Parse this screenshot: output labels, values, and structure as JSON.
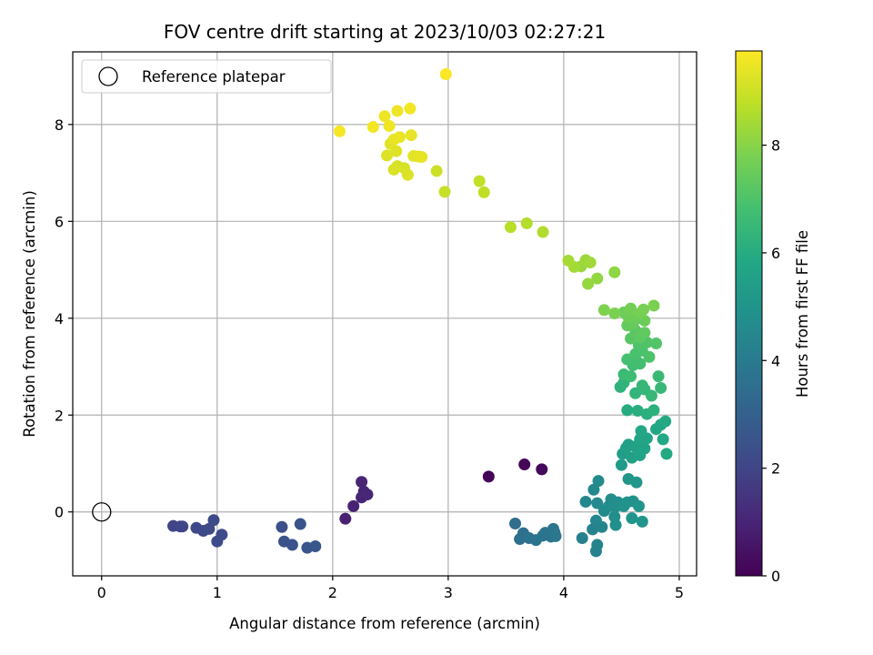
{
  "chart_data": {
    "type": "scatter",
    "title": "FOV centre drift starting at 2023/10/03 02:27:21",
    "xlabel": "Angular distance from reference (arcmin)",
    "ylabel": "Rotation from reference (arcmin)",
    "xlim": [
      -0.25,
      5.15
    ],
    "ylim": [
      -1.32,
      9.5
    ],
    "x_ticks": [
      0,
      1,
      2,
      3,
      4,
      5
    ],
    "y_ticks": [
      0,
      2,
      4,
      6,
      8
    ],
    "grid": true,
    "legend": {
      "position": "top-left",
      "entries": [
        "Reference platepar"
      ]
    },
    "reference_point": {
      "x": 0,
      "y": 0,
      "label": "Reference platepar"
    },
    "colorbar": {
      "label": "Hours from first FF file",
      "colormap": "viridis",
      "range": [
        0,
        9.75
      ],
      "ticks": [
        0,
        2,
        4,
        6,
        8
      ]
    },
    "series": [
      {
        "color_variable": "Hours from first FF file",
        "points": [
          [
            3.35,
            0.73,
            0.1
          ],
          [
            3.66,
            0.98,
            0.15
          ],
          [
            3.81,
            0.88,
            0.2
          ],
          [
            2.11,
            -0.14,
            0.9
          ],
          [
            2.18,
            0.12,
            0.95
          ],
          [
            2.25,
            0.62,
            1.0
          ],
          [
            2.27,
            0.42,
            1.0
          ],
          [
            2.25,
            0.3,
            1.05
          ],
          [
            2.3,
            0.36,
            1.1
          ],
          [
            0.62,
            -0.29,
            2.0
          ],
          [
            0.68,
            -0.3,
            2.0
          ],
          [
            0.7,
            -0.3,
            2.05
          ],
          [
            0.82,
            -0.33,
            2.1
          ],
          [
            0.88,
            -0.39,
            2.1
          ],
          [
            0.93,
            -0.35,
            2.15
          ],
          [
            0.97,
            -0.17,
            2.2
          ],
          [
            1.0,
            -0.61,
            2.2
          ],
          [
            1.04,
            -0.47,
            2.25
          ],
          [
            1.56,
            -0.31,
            2.4
          ],
          [
            1.58,
            -0.61,
            2.45
          ],
          [
            1.65,
            -0.68,
            2.5
          ],
          [
            1.72,
            -0.25,
            2.5
          ],
          [
            1.78,
            -0.74,
            2.55
          ],
          [
            1.85,
            -0.71,
            2.6
          ],
          [
            3.58,
            -0.24,
            3.5
          ],
          [
            3.62,
            -0.56,
            3.55
          ],
          [
            3.65,
            -0.44,
            3.6
          ],
          [
            3.7,
            -0.54,
            3.65
          ],
          [
            3.76,
            -0.58,
            3.7
          ],
          [
            3.82,
            -0.49,
            3.75
          ],
          [
            3.84,
            -0.43,
            3.75
          ],
          [
            3.89,
            -0.51,
            3.8
          ],
          [
            3.91,
            -0.35,
            3.8
          ],
          [
            3.92,
            -0.42,
            3.85
          ],
          [
            3.93,
            -0.5,
            3.85
          ],
          [
            4.16,
            -0.54,
            4.2
          ],
          [
            4.25,
            -0.36,
            4.3
          ],
          [
            4.28,
            -0.81,
            4.3
          ],
          [
            4.29,
            -0.68,
            4.35
          ],
          [
            4.33,
            -0.31,
            4.4
          ],
          [
            4.28,
            -0.18,
            4.45
          ],
          [
            4.19,
            0.21,
            4.5
          ],
          [
            4.26,
            0.46,
            4.55
          ],
          [
            4.3,
            0.64,
            4.6
          ],
          [
            4.29,
            0.18,
            4.6
          ],
          [
            4.35,
            0.02,
            4.65
          ],
          [
            4.39,
            0.12,
            4.7
          ],
          [
            4.41,
            0.26,
            4.7
          ],
          [
            4.44,
            -0.1,
            4.75
          ],
          [
            4.45,
            0.11,
            4.8
          ],
          [
            4.47,
            0.2,
            4.8
          ],
          [
            4.45,
            -0.27,
            4.85
          ],
          [
            4.52,
            0.12,
            4.9
          ],
          [
            4.55,
            0.2,
            4.9
          ],
          [
            4.6,
            0.22,
            4.95
          ],
          [
            4.59,
            -0.13,
            5.0
          ],
          [
            4.65,
            0.12,
            5.0
          ],
          [
            4.68,
            -0.2,
            5.05
          ],
          [
            4.63,
            0.61,
            5.1
          ],
          [
            4.56,
            0.68,
            5.15
          ],
          [
            4.5,
            0.97,
            5.3
          ],
          [
            4.51,
            1.2,
            5.4
          ],
          [
            4.54,
            1.32,
            5.45
          ],
          [
            4.59,
            1.12,
            5.5
          ],
          [
            4.56,
            1.39,
            5.5
          ],
          [
            4.62,
            1.35,
            5.55
          ],
          [
            4.66,
            1.17,
            5.6
          ],
          [
            4.7,
            1.31,
            5.65
          ],
          [
            4.66,
            1.5,
            5.7
          ],
          [
            4.72,
            1.52,
            5.7
          ],
          [
            4.67,
            1.67,
            5.75
          ],
          [
            4.8,
            1.71,
            5.8
          ],
          [
            4.84,
            1.8,
            5.8
          ],
          [
            4.86,
            1.5,
            5.85
          ],
          [
            4.88,
            1.87,
            5.9
          ],
          [
            4.89,
            1.2,
            5.9
          ],
          [
            4.55,
            2.1,
            6.0
          ],
          [
            4.64,
            2.09,
            6.1
          ],
          [
            4.72,
            2.02,
            6.15
          ],
          [
            4.78,
            2.1,
            6.2
          ],
          [
            4.49,
            2.58,
            6.25
          ],
          [
            4.52,
            2.67,
            6.3
          ],
          [
            4.62,
            2.45,
            6.35
          ],
          [
            4.7,
            2.53,
            6.4
          ],
          [
            4.68,
            2.61,
            6.45
          ],
          [
            4.76,
            2.4,
            6.5
          ],
          [
            4.84,
            2.56,
            6.5
          ],
          [
            4.82,
            2.8,
            6.55
          ],
          [
            4.52,
            2.84,
            6.6
          ],
          [
            4.58,
            2.8,
            6.65
          ],
          [
            4.6,
            3.03,
            6.7
          ],
          [
            4.63,
            3.12,
            6.75
          ],
          [
            4.66,
            3.06,
            6.8
          ],
          [
            4.55,
            3.15,
            6.85
          ],
          [
            4.62,
            3.26,
            6.9
          ],
          [
            4.68,
            3.33,
            6.95
          ],
          [
            4.74,
            3.2,
            7.0
          ],
          [
            4.65,
            3.44,
            7.0
          ],
          [
            4.72,
            3.5,
            7.05
          ],
          [
            4.8,
            3.48,
            7.1
          ],
          [
            4.58,
            3.58,
            7.2
          ],
          [
            4.62,
            3.75,
            7.25
          ],
          [
            4.66,
            3.6,
            7.3
          ],
          [
            4.7,
            3.7,
            7.35
          ],
          [
            4.55,
            3.85,
            7.4
          ],
          [
            4.6,
            3.9,
            7.45
          ],
          [
            4.64,
            4.0,
            7.5
          ],
          [
            4.7,
            3.95,
            7.55
          ],
          [
            4.56,
            4.02,
            7.6
          ],
          [
            4.52,
            4.12,
            7.6
          ],
          [
            4.58,
            4.2,
            7.65
          ],
          [
            4.66,
            4.1,
            7.7
          ],
          [
            4.69,
            4.18,
            7.75
          ],
          [
            4.78,
            4.26,
            7.8
          ],
          [
            4.44,
            4.1,
            7.8
          ],
          [
            4.35,
            4.17,
            7.85
          ],
          [
            4.44,
            4.95,
            8.1
          ],
          [
            4.29,
            4.82,
            8.15
          ],
          [
            4.21,
            4.71,
            8.2
          ],
          [
            4.15,
            5.07,
            8.25
          ],
          [
            4.19,
            5.2,
            8.3
          ],
          [
            4.23,
            5.15,
            8.35
          ],
          [
            4.09,
            5.06,
            8.4
          ],
          [
            4.04,
            5.19,
            8.45
          ],
          [
            3.82,
            5.78,
            8.6
          ],
          [
            3.68,
            5.96,
            8.65
          ],
          [
            3.54,
            5.88,
            8.7
          ],
          [
            3.31,
            6.6,
            8.8
          ],
          [
            3.27,
            6.83,
            8.85
          ],
          [
            2.97,
            6.61,
            8.9
          ],
          [
            2.9,
            7.04,
            9.0
          ],
          [
            2.56,
            7.14,
            9.1
          ],
          [
            2.62,
            7.1,
            9.15
          ],
          [
            2.65,
            6.96,
            9.2
          ],
          [
            2.53,
            7.07,
            9.2
          ],
          [
            2.47,
            7.36,
            9.25
          ],
          [
            2.55,
            7.45,
            9.3
          ],
          [
            2.5,
            7.6,
            9.3
          ],
          [
            2.7,
            7.35,
            9.35
          ],
          [
            2.74,
            7.34,
            9.35
          ],
          [
            2.77,
            7.33,
            9.4
          ],
          [
            2.68,
            7.78,
            9.4
          ],
          [
            2.58,
            7.74,
            9.45
          ],
          [
            2.53,
            7.69,
            9.45
          ],
          [
            2.49,
            7.97,
            9.5
          ],
          [
            2.45,
            8.17,
            9.5
          ],
          [
            2.56,
            8.28,
            9.55
          ],
          [
            2.67,
            8.33,
            9.6
          ],
          [
            2.35,
            7.95,
            9.6
          ],
          [
            2.06,
            7.86,
            9.65
          ],
          [
            2.98,
            9.04,
            9.7
          ]
        ]
      }
    ]
  }
}
